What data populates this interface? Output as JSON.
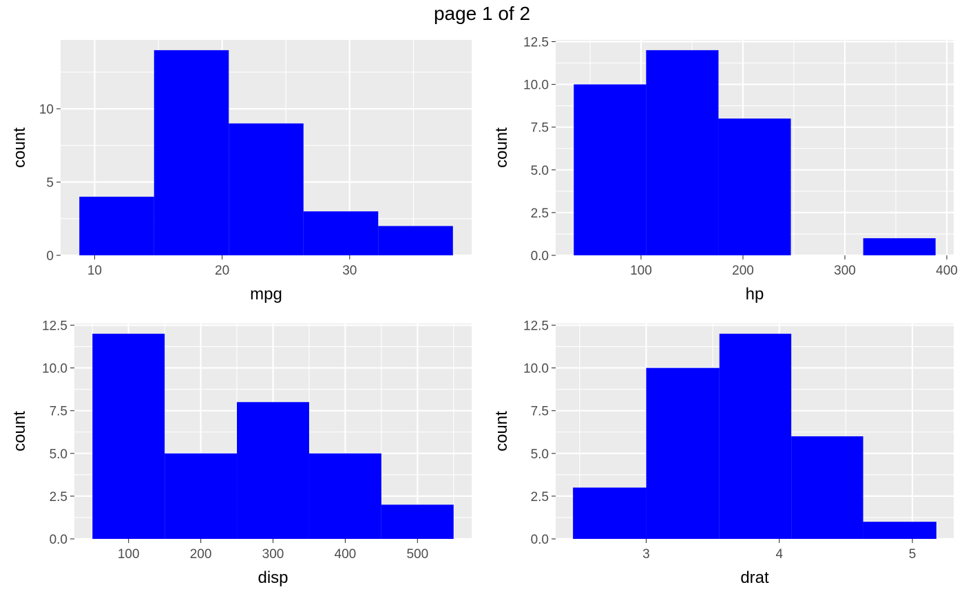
{
  "page": {
    "title": "page 1 of 2"
  },
  "colors": {
    "bar": "#0000FF",
    "panel_bg": "#EBEBEB",
    "grid": "#FFFFFF",
    "tick_label": "#4D4D4D",
    "axis_title": "#000000"
  },
  "chart_data": [
    {
      "type": "bar",
      "subtype": "histogram",
      "xlabel": "mpg",
      "ylabel": "count",
      "bins": [
        [
          8.8,
          14.66
        ],
        [
          14.66,
          20.52
        ],
        [
          20.52,
          26.38
        ],
        [
          26.38,
          32.24
        ],
        [
          32.24,
          38.1
        ]
      ],
      "counts": [
        4,
        14,
        9,
        3,
        2
      ],
      "xlim": [
        7.33,
        39.57
      ],
      "ylim": [
        0,
        14.7
      ],
      "xticks": [
        10,
        20,
        30
      ],
      "yticks": [
        0,
        5,
        10
      ],
      "xtick_labels": [
        "10",
        "20",
        "30"
      ],
      "ytick_labels": [
        "0",
        "5",
        "10"
      ],
      "grid": true
    },
    {
      "type": "bar",
      "subtype": "histogram",
      "xlabel": "hp",
      "ylabel": "count",
      "bins": [
        [
          34,
          105
        ],
        [
          105,
          176
        ],
        [
          176,
          247
        ],
        [
          247,
          318
        ],
        [
          318,
          389
        ]
      ],
      "counts": [
        10,
        12,
        8,
        0,
        1
      ],
      "xlim": [
        16.25,
        406.75
      ],
      "ylim": [
        0,
        12.6
      ],
      "xticks": [
        100,
        200,
        300,
        400
      ],
      "yticks": [
        0,
        2.5,
        5,
        7.5,
        10,
        12.5
      ],
      "xtick_labels": [
        "100",
        "200",
        "300",
        "400"
      ],
      "ytick_labels": [
        "0.0",
        "2.5",
        "5.0",
        "7.5",
        "10.0",
        "12.5"
      ],
      "grid": true
    },
    {
      "type": "bar",
      "subtype": "histogram",
      "xlabel": "disp",
      "ylabel": "count",
      "bins": [
        [
          50,
          150
        ],
        [
          150,
          250
        ],
        [
          250,
          350
        ],
        [
          350,
          450
        ],
        [
          450,
          550
        ]
      ],
      "counts": [
        12,
        5,
        8,
        5,
        2
      ],
      "xlim": [
        25,
        575
      ],
      "ylim": [
        0,
        12.6
      ],
      "xticks": [
        100,
        200,
        300,
        400,
        500
      ],
      "yticks": [
        0,
        2.5,
        5,
        7.5,
        10,
        12.5
      ],
      "xtick_labels": [
        "100",
        "200",
        "300",
        "400",
        "500"
      ],
      "ytick_labels": [
        "0.0",
        "2.5",
        "5.0",
        "7.5",
        "10.0",
        "12.5"
      ],
      "grid": true
    },
    {
      "type": "bar",
      "subtype": "histogram",
      "xlabel": "drat",
      "ylabel": "count",
      "bins": [
        [
          2.45,
          3.0
        ],
        [
          3.0,
          3.55
        ],
        [
          3.55,
          4.09
        ],
        [
          4.09,
          4.63
        ],
        [
          4.63,
          5.18
        ]
      ],
      "counts": [
        3,
        10,
        12,
        6,
        1
      ],
      "xlim": [
        2.32,
        5.31
      ],
      "ylim": [
        0,
        12.6
      ],
      "xticks": [
        3,
        4,
        5
      ],
      "yticks": [
        0,
        2.5,
        5,
        7.5,
        10,
        12.5
      ],
      "xtick_labels": [
        "3",
        "4",
        "5"
      ],
      "ytick_labels": [
        "0.0",
        "2.5",
        "5.0",
        "7.5",
        "10.0",
        "12.5"
      ],
      "grid": true
    }
  ]
}
